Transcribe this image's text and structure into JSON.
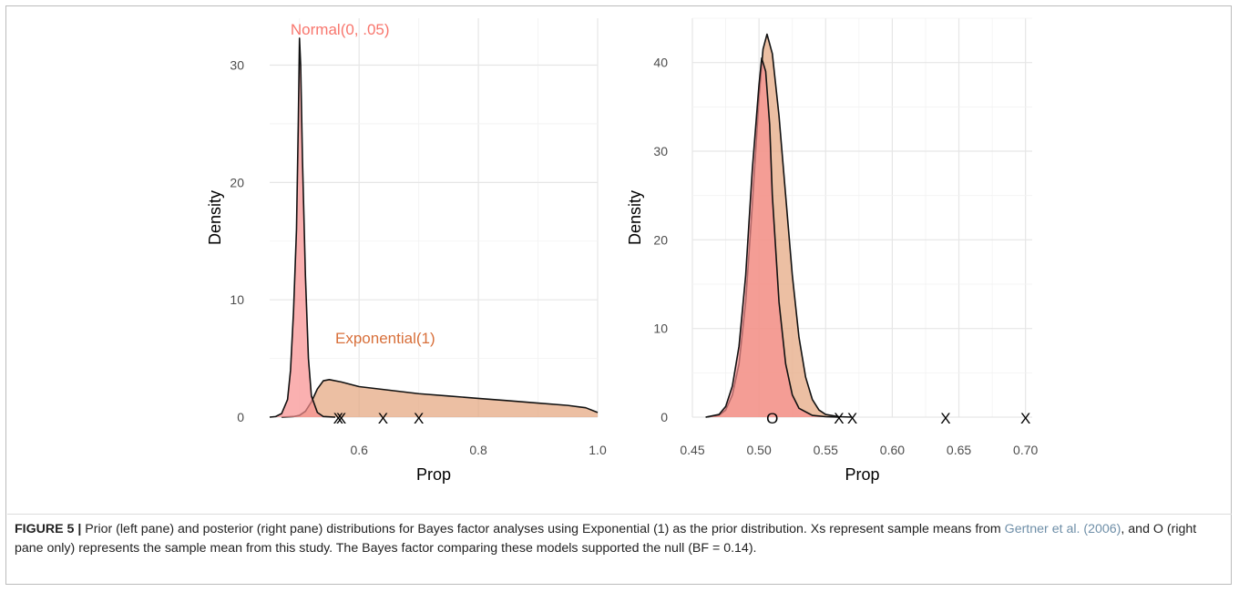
{
  "chart_data": [
    {
      "type": "area",
      "pane": "left",
      "xlabel": "Prop",
      "ylabel": "Density",
      "xlim": [
        0.45,
        1.0
      ],
      "ylim": [
        0,
        34
      ],
      "x_ticks": [
        0.6,
        0.8,
        1.0
      ],
      "x_tick_labels": [
        "0.6",
        "0.8",
        "1.0"
      ],
      "y_ticks": [
        0,
        10,
        20,
        30
      ],
      "y_tick_labels": [
        "0",
        "10",
        "20",
        "30"
      ],
      "grid": true,
      "series": [
        {
          "name": "Exponential(1)",
          "color": "#E4A47C",
          "points": [
            [
              0.47,
              0
            ],
            [
              0.49,
              0.05
            ],
            [
              0.5,
              0.15
            ],
            [
              0.51,
              0.5
            ],
            [
              0.52,
              1.3
            ],
            [
              0.53,
              2.4
            ],
            [
              0.54,
              3.1
            ],
            [
              0.55,
              3.2
            ],
            [
              0.57,
              3.0
            ],
            [
              0.6,
              2.6
            ],
            [
              0.65,
              2.3
            ],
            [
              0.7,
              2.0
            ],
            [
              0.75,
              1.8
            ],
            [
              0.8,
              1.6
            ],
            [
              0.85,
              1.4
            ],
            [
              0.9,
              1.2
            ],
            [
              0.95,
              1.0
            ],
            [
              0.98,
              0.8
            ],
            [
              1.0,
              0.4
            ]
          ]
        },
        {
          "name": "Normal(0, .05)",
          "color": "#F88E8E",
          "points": [
            [
              0.45,
              0
            ],
            [
              0.46,
              0.05
            ],
            [
              0.47,
              0.3
            ],
            [
              0.48,
              1.5
            ],
            [
              0.485,
              4.0
            ],
            [
              0.49,
              9.0
            ],
            [
              0.495,
              16.0
            ],
            [
              0.498,
              25.0
            ],
            [
              0.5,
              32.3
            ],
            [
              0.502,
              30.0
            ],
            [
              0.505,
              22.0
            ],
            [
              0.51,
              12.0
            ],
            [
              0.515,
              5.0
            ],
            [
              0.52,
              1.8
            ],
            [
              0.53,
              0.4
            ],
            [
              0.54,
              0.05
            ],
            [
              0.56,
              0
            ]
          ]
        }
      ],
      "markers": [
        {
          "label": "X",
          "x": 0.565
        },
        {
          "label": "X",
          "x": 0.57
        },
        {
          "label": "X",
          "x": 0.64
        },
        {
          "label": "X",
          "x": 0.7
        }
      ],
      "annotations": [
        {
          "text": "Normal(0, .05)",
          "x": 0.485,
          "y": 32.6,
          "color": "#F8766D"
        },
        {
          "text": "Exponential(1)",
          "x": 0.56,
          "y": 6.3,
          "color": "#D8703B"
        }
      ]
    },
    {
      "type": "area",
      "pane": "right",
      "xlabel": "Prop",
      "ylabel": "Density",
      "xlim": [
        0.45,
        0.705
      ],
      "ylim": [
        0,
        45
      ],
      "x_ticks": [
        0.45,
        0.5,
        0.55,
        0.6,
        0.65,
        0.7
      ],
      "x_tick_labels": [
        "0.45",
        "0.50",
        "0.55",
        "0.60",
        "0.65",
        "0.70"
      ],
      "y_ticks": [
        0,
        10,
        20,
        30,
        40
      ],
      "y_tick_labels": [
        "0",
        "10",
        "20",
        "30",
        "40"
      ],
      "grid": true,
      "series": [
        {
          "name": "Exponential(1)",
          "color": "#E4A47C",
          "points": [
            [
              0.46,
              0
            ],
            [
              0.47,
              0.2
            ],
            [
              0.475,
              0.8
            ],
            [
              0.48,
              2.5
            ],
            [
              0.485,
              6.0
            ],
            [
              0.49,
              13.0
            ],
            [
              0.495,
              24.0
            ],
            [
              0.5,
              36.0
            ],
            [
              0.503,
              41.5
            ],
            [
              0.506,
              43.2
            ],
            [
              0.51,
              41.0
            ],
            [
              0.515,
              34.0
            ],
            [
              0.52,
              25.0
            ],
            [
              0.525,
              16.0
            ],
            [
              0.53,
              9.0
            ],
            [
              0.535,
              4.5
            ],
            [
              0.54,
              2.0
            ],
            [
              0.545,
              0.8
            ],
            [
              0.55,
              0.3
            ],
            [
              0.56,
              0.05
            ],
            [
              0.57,
              0
            ]
          ]
        },
        {
          "name": "Normal(0, .05)",
          "color": "#F88E8E",
          "points": [
            [
              0.46,
              0
            ],
            [
              0.47,
              0.3
            ],
            [
              0.475,
              1.2
            ],
            [
              0.48,
              3.5
            ],
            [
              0.485,
              8.0
            ],
            [
              0.49,
              16.0
            ],
            [
              0.495,
              28.0
            ],
            [
              0.5,
              37.5
            ],
            [
              0.502,
              40.5
            ],
            [
              0.505,
              39.0
            ],
            [
              0.508,
              33.0
            ],
            [
              0.51,
              25.0
            ],
            [
              0.515,
              13.0
            ],
            [
              0.52,
              6.0
            ],
            [
              0.525,
              2.5
            ],
            [
              0.53,
              1.0
            ],
            [
              0.54,
              0.2
            ],
            [
              0.55,
              0.05
            ],
            [
              0.56,
              0
            ]
          ]
        }
      ],
      "markers": [
        {
          "label": "O",
          "x": 0.51
        },
        {
          "label": "X",
          "x": 0.56
        },
        {
          "label": "X",
          "x": 0.57
        },
        {
          "label": "X",
          "x": 0.64
        },
        {
          "label": "X",
          "x": 0.7
        }
      ]
    }
  ],
  "caption": {
    "label": "FIGURE 5 |",
    "text_1": " Prior (left pane) and posterior (right pane) distributions for Bayes factor analyses using Exponential (1) as the prior distribution. Xs represent sample means from ",
    "citation": "Gertner et al. (2006)",
    "text_2": ", and O (right pane only) represents the sample mean from this study. The Bayes factor comparing these models supported the null (BF = 0.14)."
  }
}
